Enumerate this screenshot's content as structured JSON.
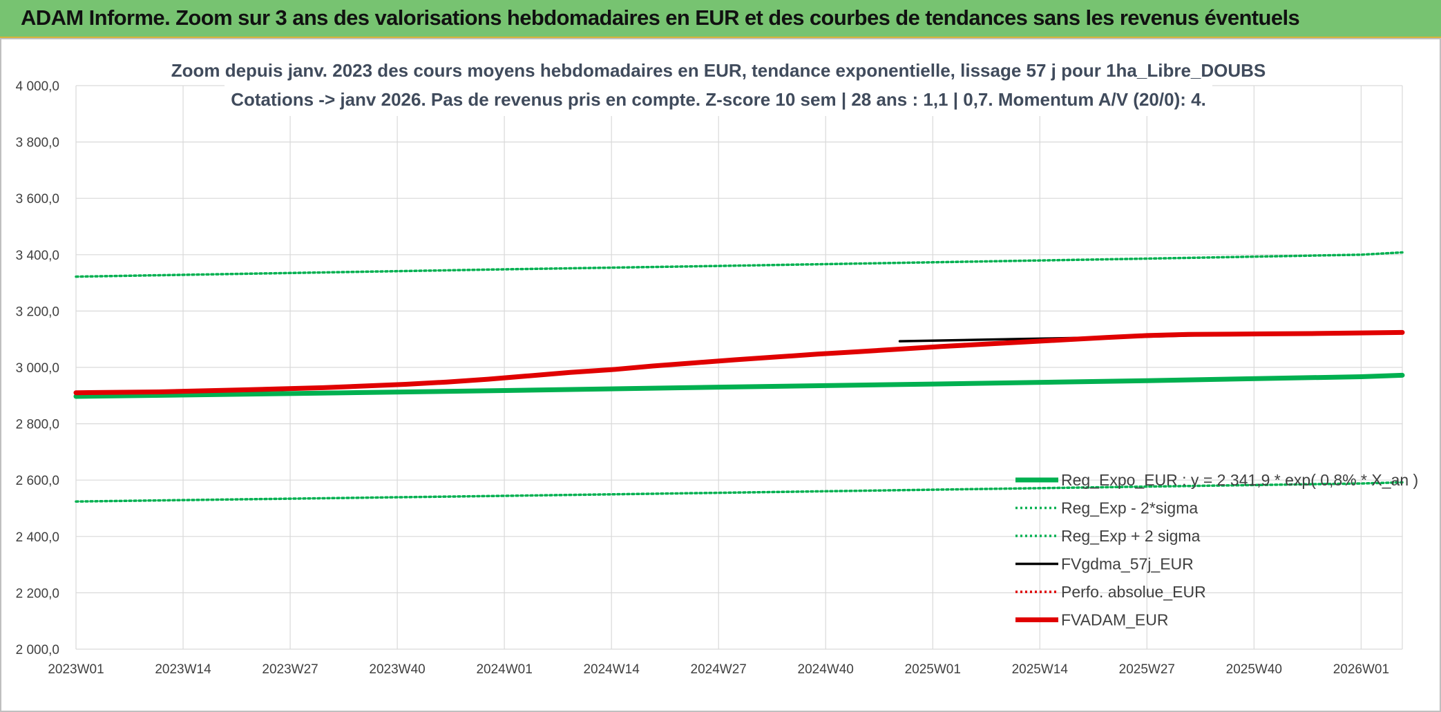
{
  "banner": {
    "title": "ADAM Informe. Zoom sur 3 ans des valorisations hebdomadaires en EUR et des courbes de tendances sans les revenus éventuels"
  },
  "colors": {
    "banner_bg": "#77c371",
    "reg_expo": "#00b050",
    "fvadam": "#e00000",
    "fvgdma": "#000000",
    "perfo": "#e00000",
    "grid": "#d9d9d9"
  },
  "chart_data": {
    "type": "line",
    "title": "Zoom depuis janv. 2023 des cours moyens hebdomadaires en EUR, tendance exponentielle, lissage 57 j pour 1ha_Libre_DOUBS",
    "subtitle": "Cotations -> janv 2026. Pas de revenus pris en compte. Z-score 10 sem | 28 ans : 1,1 | 0,7. Momentum A/V (20/0): 4.",
    "x_tick_labels": [
      "2023W01",
      "2023W14",
      "2023W27",
      "2023W40",
      "2024W01",
      "2024W14",
      "2024W27",
      "2024W40",
      "2025W01",
      "2025W14",
      "2025W27",
      "2025W40",
      "2026W01"
    ],
    "x_range_weeks": [
      0,
      161
    ],
    "ylim": [
      2000,
      4000
    ],
    "y_tick_labels": [
      "2 000,0",
      "2 200,0",
      "2 400,0",
      "2 600,0",
      "2 800,0",
      "3 000,0",
      "3 200,0",
      "3 400,0",
      "3 600,0",
      "3 800,0",
      "4 000,0"
    ],
    "grid": true,
    "legend_position": "bottom-right",
    "series": [
      {
        "name": "Reg_Expo_EUR : y = 2 341,9 * exp( 0,8% * X_an )",
        "style": "solid-thick",
        "color": "#00b050",
        "x": [
          0,
          26,
          52,
          78,
          104,
          130,
          156,
          161
        ],
        "y": [
          2897,
          2907,
          2918,
          2930,
          2941,
          2953,
          2967,
          2972
        ]
      },
      {
        "name": "Reg_Exp - 2*sigma",
        "style": "dotted",
        "color": "#00b050",
        "x": [
          0,
          26,
          52,
          78,
          104,
          130,
          156,
          161
        ],
        "y": [
          2524,
          2534,
          2544,
          2555,
          2566,
          2577,
          2588,
          2592
        ]
      },
      {
        "name": "Reg_Exp + 2 sigma",
        "style": "dotted",
        "color": "#00b050",
        "x": [
          0,
          26,
          52,
          78,
          104,
          130,
          156,
          161
        ],
        "y": [
          3322,
          3335,
          3348,
          3360,
          3373,
          3386,
          3400,
          3408
        ]
      },
      {
        "name": "FVgdma_57j_EUR",
        "style": "solid",
        "color": "#000000",
        "x": [
          100,
          115,
          130,
          135,
          140,
          145
        ],
        "y": [
          3093,
          3101,
          3109,
          3113,
          3115,
          3117
        ]
      },
      {
        "name": "Perfo. absolue_EUR",
        "style": "dotted",
        "color": "#e00000",
        "x": [],
        "y": []
      },
      {
        "name": "FVADAM_EUR",
        "style": "solid-thick",
        "color": "#e00000",
        "x": [
          0,
          10,
          20,
          30,
          40,
          45,
          50,
          55,
          60,
          65,
          70,
          75,
          80,
          85,
          90,
          95,
          100,
          105,
          110,
          115,
          120,
          125,
          130,
          135,
          140,
          145,
          150,
          155,
          161
        ],
        "y": [
          2910,
          2913,
          2920,
          2928,
          2940,
          2948,
          2958,
          2970,
          2982,
          2992,
          3005,
          3016,
          3027,
          3037,
          3047,
          3056,
          3065,
          3074,
          3082,
          3090,
          3098,
          3106,
          3113,
          3117,
          3118,
          3119,
          3120,
          3122,
          3124
        ]
      }
    ]
  }
}
